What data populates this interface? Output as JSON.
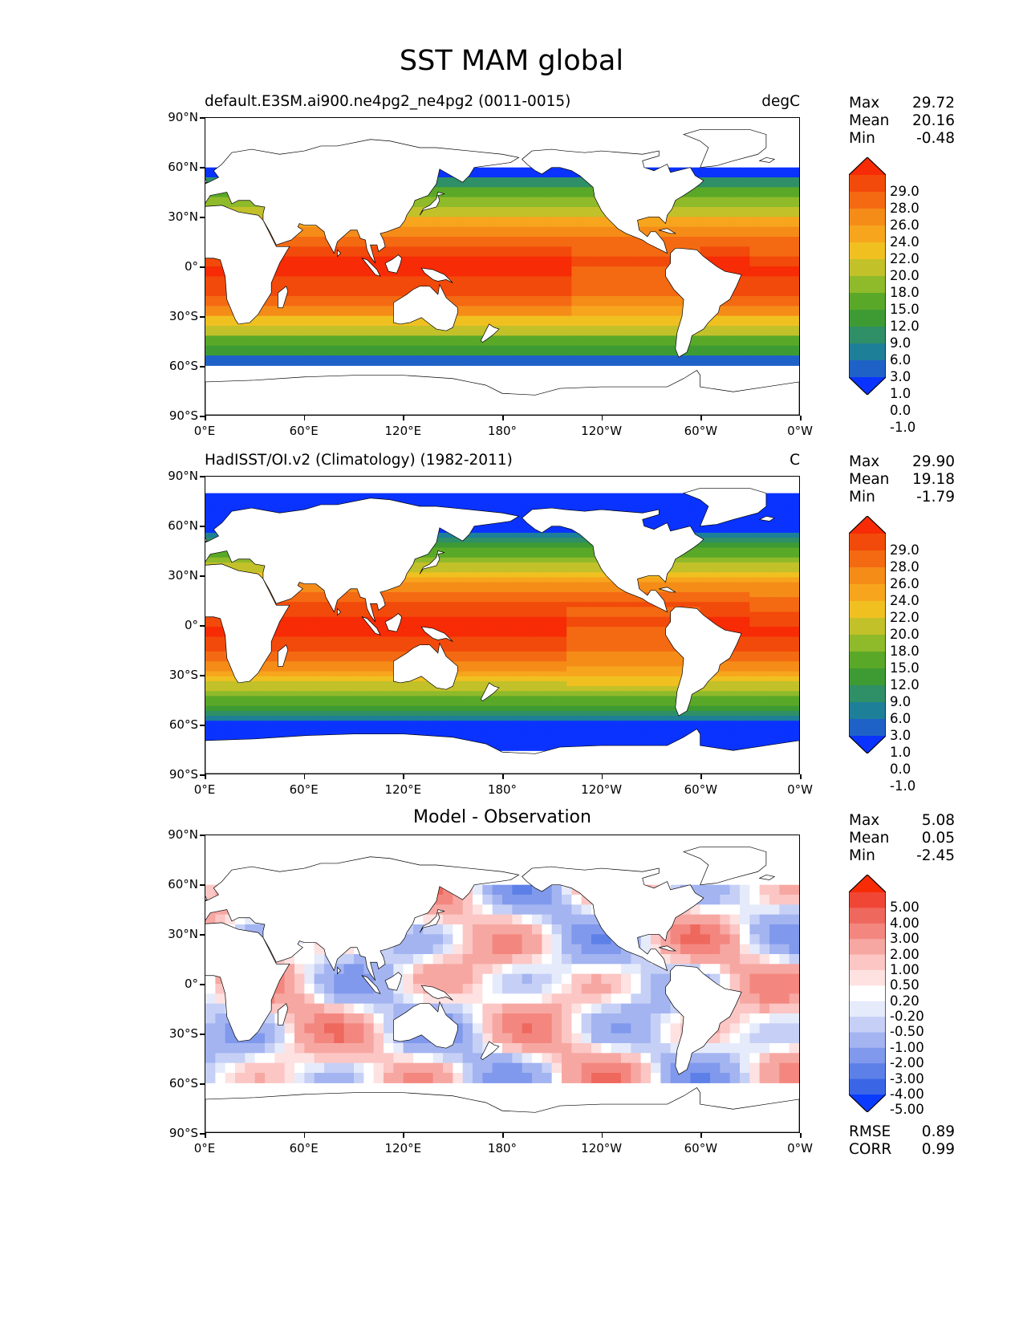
{
  "title": "SST MAM global",
  "lat_ticks": [
    "90°N",
    "60°N",
    "30°N",
    "0°",
    "30°S",
    "60°S",
    "90°S"
  ],
  "lon_ticks": [
    "0°E",
    "60°E",
    "120°E",
    "180°",
    "120°W",
    "60°W",
    "0°W"
  ],
  "colors": {
    "sst_levels": [
      "#0a33ff",
      "#1f62c7",
      "#1d7f98",
      "#2f8f66",
      "#3e9b33",
      "#5aa828",
      "#8fba2a",
      "#c2c12a",
      "#f0c021",
      "#f7a51d",
      "#f58c18",
      "#f46a12",
      "#f24a0b",
      "#f72b05"
    ],
    "diff_levels": [
      "#0b3bff",
      "#3a66e6",
      "#5d80e8",
      "#8099ec",
      "#a3b4f1",
      "#c6d0f6",
      "#e6ebfb",
      "#ffffff",
      "#fde2e1",
      "#fbc6c4",
      "#f7a7a2",
      "#f3877f",
      "#ef685d",
      "#f04636",
      "#f72b05"
    ],
    "land_outline": "#000000"
  },
  "panels": [
    {
      "name": "model",
      "title": "default.E3SM.ai900.ne4pg2_ne4pg2 (0011-0015)",
      "units": "degC",
      "stats": [
        {
          "label": "Max",
          "value": "29.72"
        },
        {
          "label": "Mean",
          "value": "20.16"
        },
        {
          "label": "Min",
          "value": "-0.48"
        }
      ],
      "colorbar_labels": [
        "29.0",
        "28.0",
        "26.0",
        "24.0",
        "22.0",
        "20.0",
        "18.0",
        "15.0",
        "12.0",
        "9.0",
        "6.0",
        "3.0",
        "1.0",
        "0.0",
        "-1.0"
      ]
    },
    {
      "name": "observation",
      "title": "HadISST/OI.v2 (Climatology) (1982-2011)",
      "units": "C",
      "stats": [
        {
          "label": "Max",
          "value": "29.90"
        },
        {
          "label": "Mean",
          "value": "19.18"
        },
        {
          "label": "Min",
          "value": "-1.79"
        }
      ],
      "colorbar_labels": [
        "29.0",
        "28.0",
        "26.0",
        "24.0",
        "22.0",
        "20.0",
        "18.0",
        "15.0",
        "12.0",
        "9.0",
        "6.0",
        "3.0",
        "1.0",
        "0.0",
        "-1.0"
      ]
    },
    {
      "name": "difference",
      "title": "Model - Observation",
      "stats": [
        {
          "label": "Max",
          "value": "5.08"
        },
        {
          "label": "Mean",
          "value": "0.05"
        },
        {
          "label": "Min",
          "value": "-2.45"
        }
      ],
      "colorbar_labels": [
        "5.00",
        "4.00",
        "3.00",
        "2.00",
        "1.00",
        "0.50",
        "0.20",
        "-0.20",
        "-0.50",
        "-1.00",
        "-2.00",
        "-3.00",
        "-4.00",
        "-5.00"
      ],
      "metrics": [
        {
          "label": "RMSE",
          "value": "0.89"
        },
        {
          "label": "CORR",
          "value": "0.99"
        }
      ]
    }
  ]
}
